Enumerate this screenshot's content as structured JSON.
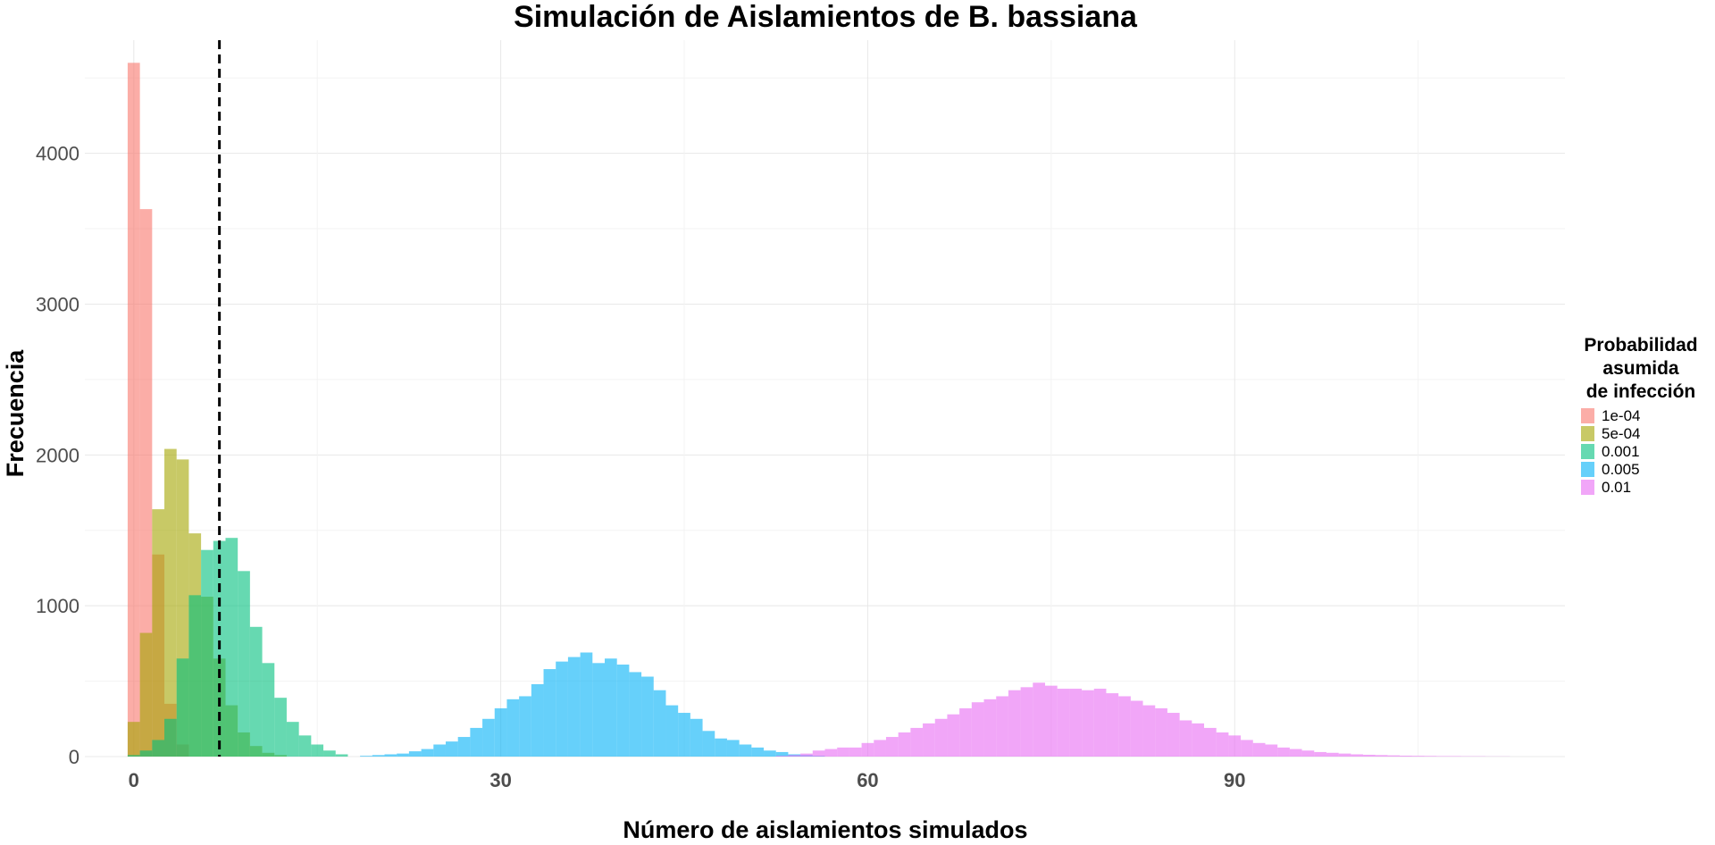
{
  "chart_data": {
    "type": "bar",
    "title": "Simulación de Aislamientos de B. bassiana",
    "xlabel": "Número de aislamientos simulados",
    "ylabel": "Frecuencia",
    "xlim": [
      -4,
      117
    ],
    "ylim": [
      0,
      4750
    ],
    "x_ticks": [
      0,
      30,
      60,
      90
    ],
    "y_ticks": [
      0,
      1000,
      2000,
      3000,
      4000
    ],
    "grid": true,
    "bin_width": 1,
    "opacity": 0.6,
    "vline": {
      "x": 7,
      "style": "dashed"
    },
    "legend": {
      "title_lines": [
        "Probabilidad",
        "asumida",
        "de infección"
      ],
      "position": "right"
    },
    "series": [
      {
        "name": "1e-04",
        "color": "#F8766D",
        "x": [
          0,
          1,
          2,
          3,
          4
        ],
        "values": [
          4600,
          3630,
          1340,
          350,
          80
        ]
      },
      {
        "name": "5e-04",
        "color": "#A3A500",
        "x": [
          0,
          1,
          2,
          3,
          4,
          5,
          6,
          7,
          8,
          9,
          10,
          11,
          12
        ],
        "values": [
          230,
          820,
          1640,
          2040,
          1970,
          1480,
          1060,
          650,
          340,
          160,
          70,
          25,
          10
        ]
      },
      {
        "name": "0.001",
        "color": "#00BF7D",
        "x": [
          0,
          1,
          2,
          3,
          4,
          5,
          6,
          7,
          8,
          9,
          10,
          11,
          12,
          13,
          14,
          15,
          16,
          17
        ],
        "values": [
          10,
          40,
          110,
          250,
          650,
          1070,
          1370,
          1430,
          1450,
          1230,
          860,
          620,
          390,
          230,
          140,
          80,
          40,
          15
        ]
      },
      {
        "name": "0.005",
        "color": "#00B0F6",
        "x": [
          19,
          20,
          21,
          22,
          23,
          24,
          25,
          26,
          27,
          28,
          29,
          30,
          31,
          32,
          33,
          34,
          35,
          36,
          37,
          38,
          39,
          40,
          41,
          42,
          43,
          44,
          45,
          46,
          47,
          48,
          49,
          50,
          51,
          52,
          53,
          54,
          55,
          56
        ],
        "values": [
          5,
          10,
          15,
          20,
          35,
          50,
          80,
          100,
          130,
          190,
          250,
          320,
          380,
          400,
          480,
          580,
          630,
          660,
          690,
          620,
          650,
          610,
          560,
          530,
          440,
          340,
          290,
          250,
          170,
          120,
          110,
          80,
          60,
          40,
          30,
          15,
          10,
          5
        ]
      },
      {
        "name": "0.01",
        "color": "#E76BF3",
        "x": [
          53,
          54,
          55,
          56,
          57,
          58,
          59,
          60,
          61,
          62,
          63,
          64,
          65,
          66,
          67,
          68,
          69,
          70,
          71,
          72,
          73,
          74,
          75,
          76,
          77,
          78,
          79,
          80,
          81,
          82,
          83,
          84,
          85,
          86,
          87,
          88,
          89,
          90,
          91,
          92,
          93,
          94,
          95,
          96,
          97,
          98,
          99,
          100,
          101,
          102,
          103,
          104,
          105,
          106,
          107,
          108,
          109,
          110,
          111,
          112
        ],
        "values": [
          5,
          10,
          20,
          40,
          50,
          60,
          60,
          90,
          110,
          130,
          160,
          190,
          220,
          250,
          280,
          320,
          360,
          380,
          400,
          440,
          460,
          490,
          470,
          450,
          450,
          440,
          450,
          420,
          400,
          370,
          340,
          320,
          290,
          240,
          220,
          190,
          160,
          140,
          110,
          90,
          80,
          60,
          50,
          40,
          30,
          25,
          20,
          15,
          12,
          10,
          8,
          6,
          5,
          4,
          3,
          3,
          2,
          2,
          1,
          1
        ]
      }
    ]
  }
}
